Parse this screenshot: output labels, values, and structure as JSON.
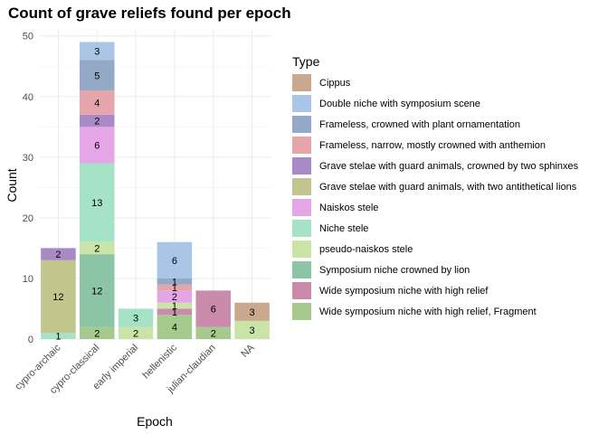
{
  "chart_data": {
    "type": "bar",
    "stacked": true,
    "title": "Count of grave reliefs found per epoch",
    "xlabel": "Epoch",
    "ylabel": "Count",
    "ylim": [
      0,
      51
    ],
    "yticks": [
      0,
      10,
      20,
      30,
      40,
      50
    ],
    "grid": true,
    "legend_position": "right",
    "legend_title": "Type",
    "categories": [
      "cypro-archaic",
      "cypro-classical",
      "early imperial",
      "hellenistic",
      "julian-claudian",
      "NA"
    ],
    "series": [
      {
        "name": "Cippus",
        "color": "#c9a88e",
        "values": [
          0,
          0,
          0,
          0,
          0,
          3
        ]
      },
      {
        "name": "Double niche with symposium scene",
        "color": "#a9c6e6",
        "values": [
          0,
          3,
          0,
          6,
          0,
          0
        ]
      },
      {
        "name": "Frameless, crowned with plant ornamentation",
        "color": "#93a9c6",
        "values": [
          0,
          5,
          0,
          1,
          0,
          0
        ]
      },
      {
        "name": "Frameless, narrow, mostly crowned with anthemion",
        "color": "#e6a5aa",
        "values": [
          0,
          4,
          0,
          1,
          0,
          0
        ]
      },
      {
        "name": "Grave stelae with guard animals, crowned by two sphinxes",
        "color": "#a88bc6",
        "values": [
          2,
          2,
          0,
          0,
          0,
          0
        ]
      },
      {
        "name": "Grave stelae with guard animals, with two antithetical lions",
        "color": "#c4c48e",
        "values": [
          12,
          0,
          0,
          0,
          0,
          0
        ]
      },
      {
        "name": "Naiskos stele",
        "color": "#e4a6e6",
        "values": [
          0,
          6,
          0,
          2,
          0,
          0
        ]
      },
      {
        "name": "Niche stele",
        "color": "#a6e2c6",
        "values": [
          1,
          13,
          3,
          0,
          0,
          0
        ]
      },
      {
        "name": "pseudo-naiskos stele",
        "color": "#c9e4a6",
        "values": [
          0,
          2,
          2,
          1,
          0,
          3
        ]
      },
      {
        "name": "Symposium niche crowned by lion",
        "color": "#8cc4a6",
        "values": [
          0,
          12,
          0,
          0,
          0,
          0
        ]
      },
      {
        "name": "Wide symposium niche with high relief",
        "color": "#c98aab",
        "values": [
          0,
          0,
          0,
          1,
          6,
          0
        ]
      },
      {
        "name": "Wide symposium niche with high relief, Fragment",
        "color": "#a6c98e",
        "values": [
          0,
          2,
          0,
          4,
          2,
          0
        ]
      }
    ]
  }
}
